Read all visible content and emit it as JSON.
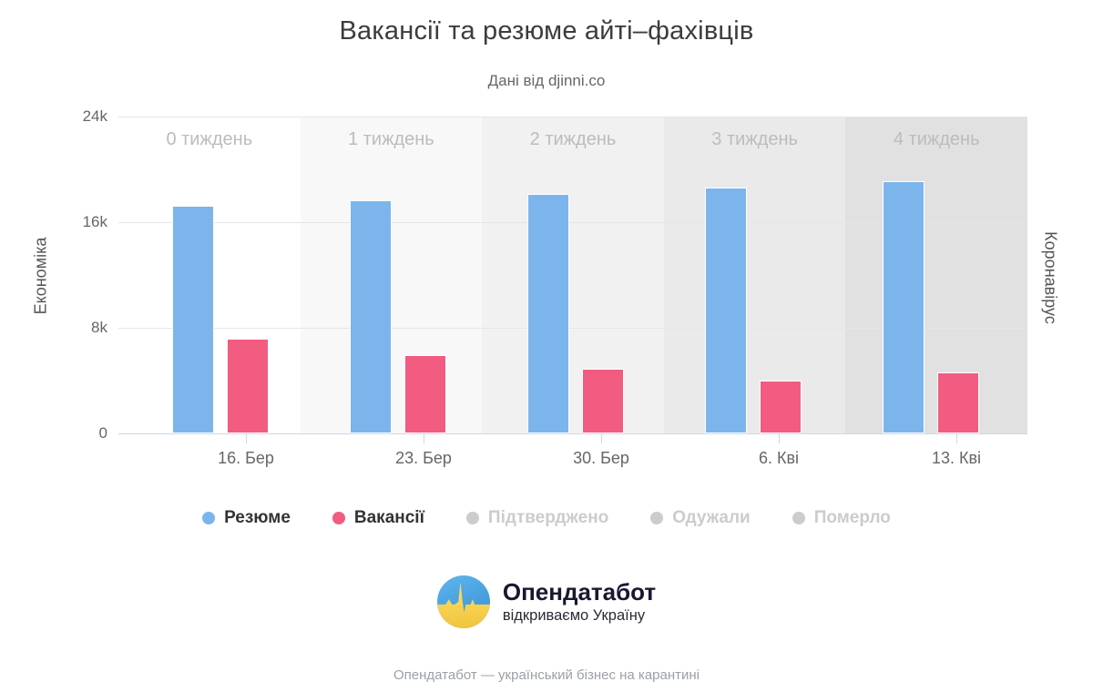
{
  "title": "Вакансії та резюме айті–фахівців",
  "subtitle": "Дані від djinni.co",
  "left_axis_title": "Економіка",
  "right_axis_title": "Коронавірус",
  "chart_data": {
    "type": "bar",
    "categories": [
      "16. Бер",
      "23. Бер",
      "30. Бер",
      "6. Кві",
      "13. Кві"
    ],
    "week_bands": [
      "0 тиждень",
      "1 тиждень",
      "2 тиждень",
      "3 тиждень",
      "4 тиждень"
    ],
    "series": [
      {
        "name": "Резюме",
        "color": "#7cb5ec",
        "visible": true,
        "values": [
          17250,
          17650,
          18150,
          18650,
          19100
        ]
      },
      {
        "name": "Вакансії",
        "color": "#f15c80",
        "visible": true,
        "values": [
          7150,
          5900,
          4870,
          3970,
          4590
        ]
      },
      {
        "name": "Підтверджено",
        "color": "#cccccc",
        "visible": false,
        "values": []
      },
      {
        "name": "Одужали",
        "color": "#cccccc",
        "visible": false,
        "values": []
      },
      {
        "name": "Померло",
        "color": "#cccccc",
        "visible": false,
        "values": []
      }
    ],
    "ylim": [
      0,
      24000
    ],
    "yticks": [
      0,
      8000,
      16000,
      24000
    ],
    "ytick_labels": [
      "0",
      "8k",
      "16k",
      "24k"
    ],
    "grid": "on",
    "legend_position": "bottom"
  },
  "colors": {
    "band_fills": [
      "transparent",
      "#f8f8f8",
      "#f1f1f1",
      "#eaeaea",
      "#e1e1e1"
    ],
    "gridline": "#e6e6e6",
    "axis_line": "#ccd6eb",
    "resume_blue": "#7cb5ec",
    "vacancy_pink": "#f15c80",
    "disabled_gray": "#cccccc",
    "logo_blue": "#4aa3e0",
    "logo_yellow": "#fbd34d"
  },
  "logo": {
    "name": "Опендатабот",
    "tagline": "відкриваємо Україну"
  },
  "footer": "Опендатабот — український бізнес на карантині"
}
